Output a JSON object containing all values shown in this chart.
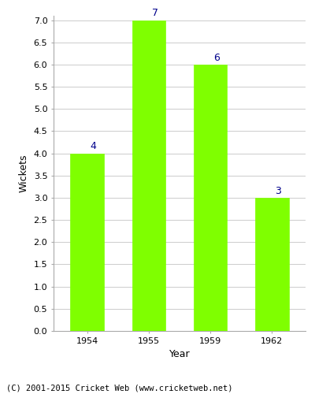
{
  "years": [
    "1954",
    "1955",
    "1959",
    "1962"
  ],
  "values": [
    4,
    7,
    6,
    3
  ],
  "bar_color": "#7FFF00",
  "bar_edge_color": "#7FFF00",
  "ylabel": "Wickets",
  "xlabel": "Year",
  "ylim": [
    0.0,
    7.0
  ],
  "yticks": [
    0.0,
    0.5,
    1.0,
    1.5,
    2.0,
    2.5,
    3.0,
    3.5,
    4.0,
    4.5,
    5.0,
    5.5,
    6.0,
    6.5,
    7.0
  ],
  "annotation_color": "#00008B",
  "annotation_fontsize": 9,
  "axis_label_fontsize": 9,
  "tick_fontsize": 8,
  "footer_text": "(C) 2001-2015 Cricket Web (www.cricketweb.net)",
  "footer_fontsize": 7.5,
  "background_color": "#ffffff",
  "grid_color": "#cccccc",
  "bar_width": 0.55
}
